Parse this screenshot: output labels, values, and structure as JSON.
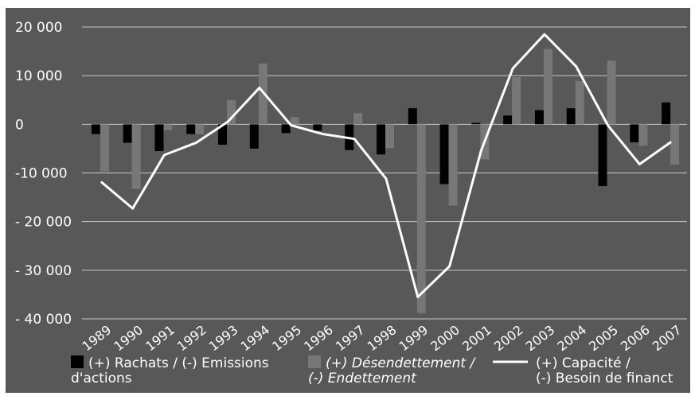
{
  "chart_data": {
    "type": "bar",
    "categories": [
      "1989",
      "1990",
      "1991",
      "1992",
      "1993",
      "1994",
      "1995",
      "1996",
      "1997",
      "1998",
      "1999",
      "2000",
      "2001",
      "2002",
      "2003",
      "2004",
      "2005",
      "2006",
      "2007"
    ],
    "series": [
      {
        "name": "(+) Rachats / (-) Emissions d'actions",
        "kind": "bar",
        "color": "#000000",
        "values": [
          -2000,
          -3800,
          -5500,
          -2000,
          -4200,
          -5000,
          -1800,
          -1300,
          -5300,
          -6200,
          3300,
          -12300,
          300,
          1800,
          2900,
          3300,
          -12700,
          -3700,
          4500
        ]
      },
      {
        "name": "(+) Désendettement / (-) Endettement",
        "kind": "bar",
        "color": "#777777",
        "values": [
          -9700,
          -13300,
          -1200,
          -2000,
          5000,
          12500,
          1500,
          0,
          2300,
          -4900,
          -38800,
          -16700,
          -7200,
          9700,
          15500,
          8900,
          13100,
          -4400,
          -8300
        ]
      },
      {
        "name": "(+) Capacité / (-) Besoin de financt",
        "kind": "line",
        "color": "#ffffff",
        "values": [
          -11800,
          -17300,
          -6300,
          -3800,
          500,
          7500,
          -200,
          -2000,
          -3000,
          -11200,
          -35500,
          -29200,
          -5400,
          11500,
          18500,
          11900,
          -200,
          -8200,
          -3600
        ]
      }
    ],
    "yticks": [
      "20 000",
      "10 000",
      "0",
      "-10 000",
      "- 20 000",
      "- 30 000",
      "- 40 000"
    ],
    "ylim": [
      -40000,
      20000
    ],
    "grid": true,
    "legend": {
      "placement": "bottom",
      "items": [
        {
          "lines": [
            "(+) Rachats / (-) Emissions",
            "d'actions"
          ],
          "italic": false
        },
        {
          "lines": [
            "(+) Désendettement /",
            "(-) Endettement"
          ],
          "italic": true
        },
        {
          "lines": [
            "(+) Capacité /",
            "(-) Besoin de financt"
          ],
          "italic": false
        }
      ]
    }
  }
}
